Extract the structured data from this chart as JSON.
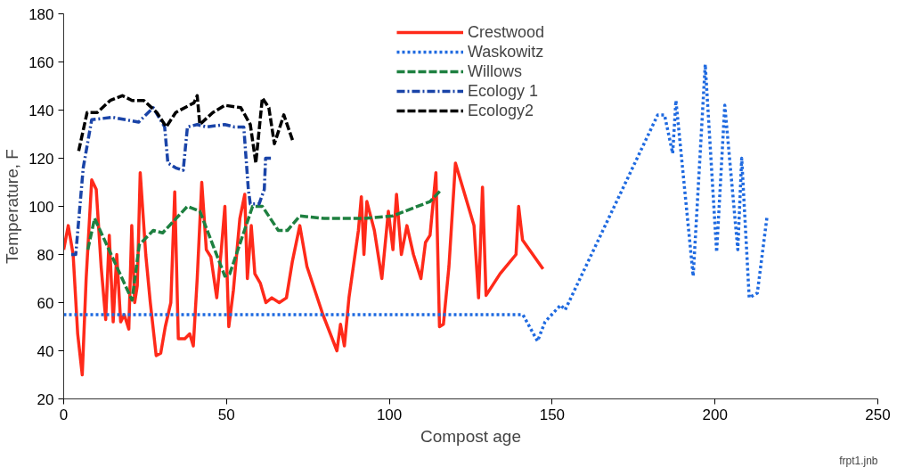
{
  "chart_data": {
    "type": "line",
    "xlabel": "Compost age",
    "ylabel": "Temperature, F",
    "xlim": [
      0,
      250
    ],
    "xticks": [
      0,
      50,
      100,
      150,
      200,
      250
    ],
    "ylim": [
      20,
      180
    ],
    "yticks": [
      20,
      40,
      60,
      80,
      100,
      120,
      140,
      160,
      180
    ],
    "grid": false,
    "legend": "top",
    "marker": "none",
    "annotations": [
      "frpt1.jnb"
    ],
    "series": [
      {
        "name": "Crestwood",
        "color": "#ff2a1a",
        "line_style": "solid",
        "x": [
          0,
          1.4,
          2.9,
          4.3,
          5.7,
          6.9,
          8.6,
          10,
          11.5,
          12.9,
          14,
          15.2,
          16.3,
          17.5,
          18.6,
          20,
          20.9,
          21.8,
          22.6,
          23.5,
          25.2,
          26.6,
          28.4,
          29.8,
          31.2,
          32.9,
          34.1,
          35.2,
          37.2,
          38.7,
          39.8,
          41,
          42.4,
          43.8,
          45.2,
          47,
          48.4,
          49.5,
          50.7,
          52.1,
          54.1,
          55.6,
          56.4,
          57.6,
          58.7,
          60.4,
          62.1,
          63.9,
          66.2,
          68.4,
          70.2,
          72.5,
          74.7,
          79.6,
          83.9,
          85,
          86.2,
          87.6,
          90.5,
          91.4,
          92.2,
          93.1,
          95.4,
          97.7,
          99.7,
          101.1,
          102.2,
          103.7,
          105.4,
          107.4,
          109.7,
          111.1,
          112.5,
          114.3,
          115.4,
          116.6,
          118.3,
          120.3,
          126,
          127.4,
          128.6,
          129.7,
          134,
          138.9,
          139.7,
          140.9,
          147.2
        ],
        "values": [
          82,
          92,
          80,
          47,
          30,
          70,
          111,
          107,
          75,
          53,
          88,
          52,
          80,
          52,
          55,
          49,
          92,
          60,
          67,
          114,
          80,
          60,
          38,
          39,
          50,
          60,
          106,
          45,
          45,
          47,
          42,
          70,
          110,
          82,
          79,
          62,
          82,
          100,
          50,
          65,
          95,
          105,
          70,
          92,
          72,
          68,
          60,
          62,
          60,
          62,
          77,
          92,
          75,
          55,
          40,
          51,
          42,
          62,
          90,
          104,
          80,
          102,
          90,
          70,
          98,
          82,
          105,
          80,
          92,
          80,
          70,
          85,
          88,
          114,
          50,
          51,
          75,
          118,
          92,
          62,
          108,
          63,
          72,
          80,
          100,
          86,
          74
        ]
      },
      {
        "name": "Waskowitz",
        "color": "#1f6ae0",
        "line_style": "dotted",
        "x": [
          0,
          141,
          145.5,
          147.8,
          152.6,
          154,
          182.4,
          184.5,
          187,
          188,
          193.3,
          197,
          200.5,
          203,
          207,
          208.2,
          210.5,
          213,
          216
        ],
        "values": [
          55,
          55,
          44,
          52,
          59,
          57,
          138,
          138,
          122,
          144,
          71,
          159,
          81,
          142,
          82,
          120,
          62,
          64,
          96
        ]
      },
      {
        "name": "Willows",
        "color": "#1e8040",
        "line_style": "dashed",
        "x": [
          7.4,
          9.5,
          21,
          23.2,
          27.5,
          30.4,
          38,
          41.8,
          49.5,
          51,
          58,
          61,
          65.9,
          68.7,
          72.5,
          80,
          92,
          101,
          104.8,
          112.5,
          116
        ],
        "values": [
          82,
          95,
          61,
          84,
          90,
          89,
          100,
          98,
          71,
          72,
          100,
          100,
          90,
          90,
          96,
          95,
          95,
          96,
          98,
          102,
          107
        ]
      },
      {
        "name": "Ecology 1",
        "color": "#1a44a8",
        "line_style": "dashdot",
        "x": [
          2.3,
          3.7,
          6,
          8.6,
          15,
          23,
          27.5,
          31,
          32,
          34.4,
          36.7,
          38,
          41,
          43.8,
          49.5,
          52.4,
          55.3,
          56.7,
          57.3,
          60,
          61.6,
          62,
          64
        ],
        "values": [
          80,
          80,
          116,
          136,
          137,
          135,
          141,
          133,
          118,
          116,
          115,
          133,
          134,
          133,
          134,
          133,
          133,
          107,
          101,
          101,
          107,
          120,
          120
        ]
      },
      {
        "name": "Ecology2",
        "color": "#000000",
        "line_style": "dashed",
        "x": [
          4.6,
          7.2,
          10.3,
          14.3,
          18,
          21,
          24.6,
          28.6,
          31.5,
          34.4,
          40,
          41,
          41.8,
          45.8,
          49.5,
          54.4,
          57.3,
          59,
          61,
          63,
          64.7,
          67.6,
          70.4
        ],
        "values": [
          123,
          139,
          139,
          144,
          146,
          144,
          144,
          139,
          133,
          139,
          143,
          146,
          134,
          139,
          142,
          141,
          134,
          118,
          145,
          141,
          126,
          138,
          127
        ]
      }
    ]
  }
}
